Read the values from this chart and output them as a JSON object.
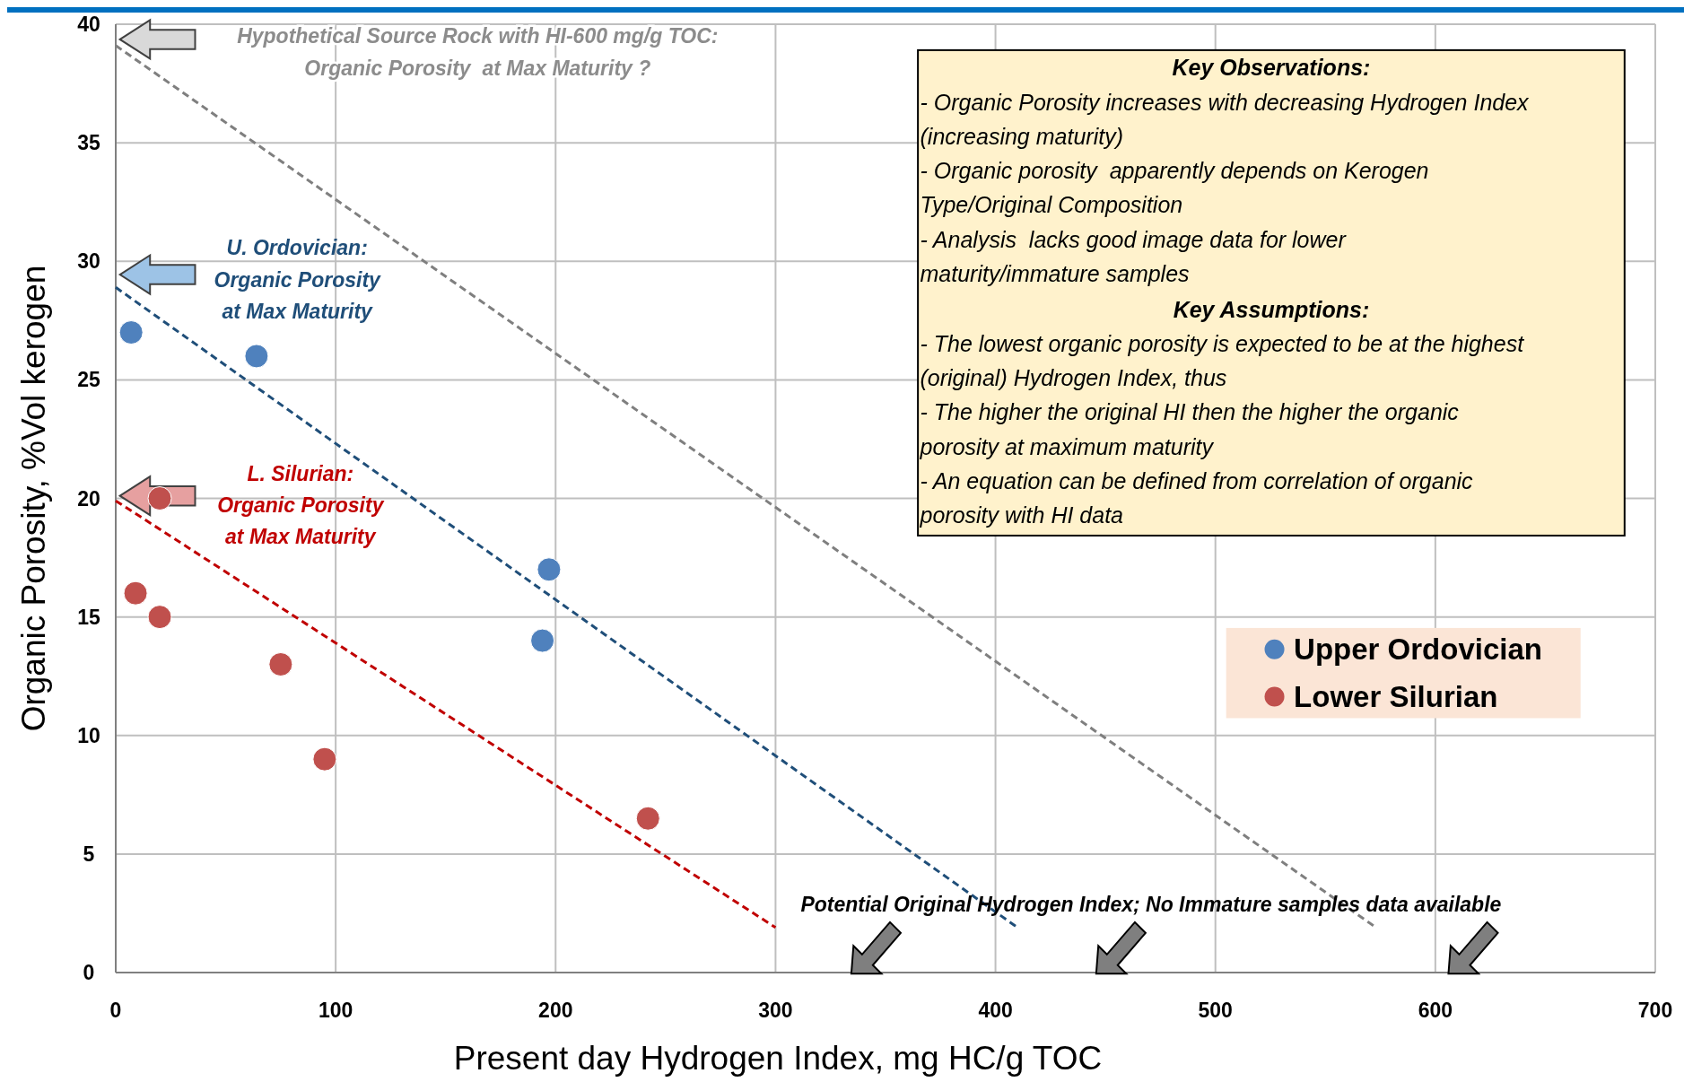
{
  "chart_data": {
    "type": "scatter",
    "xlabel": "Present day Hydrogen Index, mg HC/g TOC",
    "ylabel": "Organic Porosity, %Vol kerogen",
    "xlim": [
      0,
      700
    ],
    "xticks": [
      0,
      100,
      200,
      300,
      400,
      500,
      600,
      700
    ],
    "ylim": [
      0,
      40
    ],
    "yticks": [
      0,
      5,
      10,
      15,
      20,
      25,
      30,
      35,
      40
    ],
    "grid": true,
    "legend": "right",
    "marker": "circle",
    "series": [
      {
        "name": "Upper Ordovician",
        "color": "#4f81bd",
        "x": [
          7,
          64,
          197,
          194
        ],
        "values": [
          27,
          26,
          17,
          14
        ]
      },
      {
        "name": "Lower Silurian",
        "color": "#c0504d",
        "x": [
          20,
          9,
          20,
          75,
          95,
          242
        ],
        "values": [
          20,
          16,
          15,
          13,
          9,
          6.5
        ]
      },
      {
        "type": "line",
        "color": "#7f7f7f",
        "line_style": "dashed",
        "marker": "none",
        "x": [
          0,
          573
        ],
        "values": [
          39.1,
          1.9
        ]
      },
      {
        "type": "line",
        "color": "#1f4e79",
        "line_style": "dashed",
        "marker": "none",
        "x": [
          0,
          410
        ],
        "values": [
          28.9,
          1.9
        ]
      },
      {
        "type": "line",
        "color": "#c00000",
        "line_style": "dashed",
        "marker": "none",
        "x": [
          0,
          300
        ],
        "values": [
          19.9,
          1.9
        ]
      }
    ],
    "annotations": [
      "Hypothetical Source Rock with HI-600 mg/g TOC:",
      "Organic Porosity  at Max Maturity ?",
      "U. Ordovician:",
      "Organic Porosity",
      "at Max Maturity",
      "L. Silurian:",
      "Organic Porosity",
      "at Max Maturity",
      "Potential Original Hydrogen Index; No Immature samples data available",
      "Key Observations:",
      "- Organic Porosity increases with decreasing Hydrogen Index",
      "(increasing maturity)",
      "- Organic porosity  apparently depends on Kerogen",
      "Type/Original Composition",
      "- Analysis  lacks good image data for lower",
      "maturity/immature samples",
      "Key Assumptions:",
      "- The lowest organic porosity is expected to be at the highest",
      "(original) Hydrogen Index, thus",
      "- The higher the original HI then the higher the organic",
      "porosity at maximum maturity",
      "- An equation can be defined from correlation of organic",
      "porosity with HI data"
    ]
  }
}
